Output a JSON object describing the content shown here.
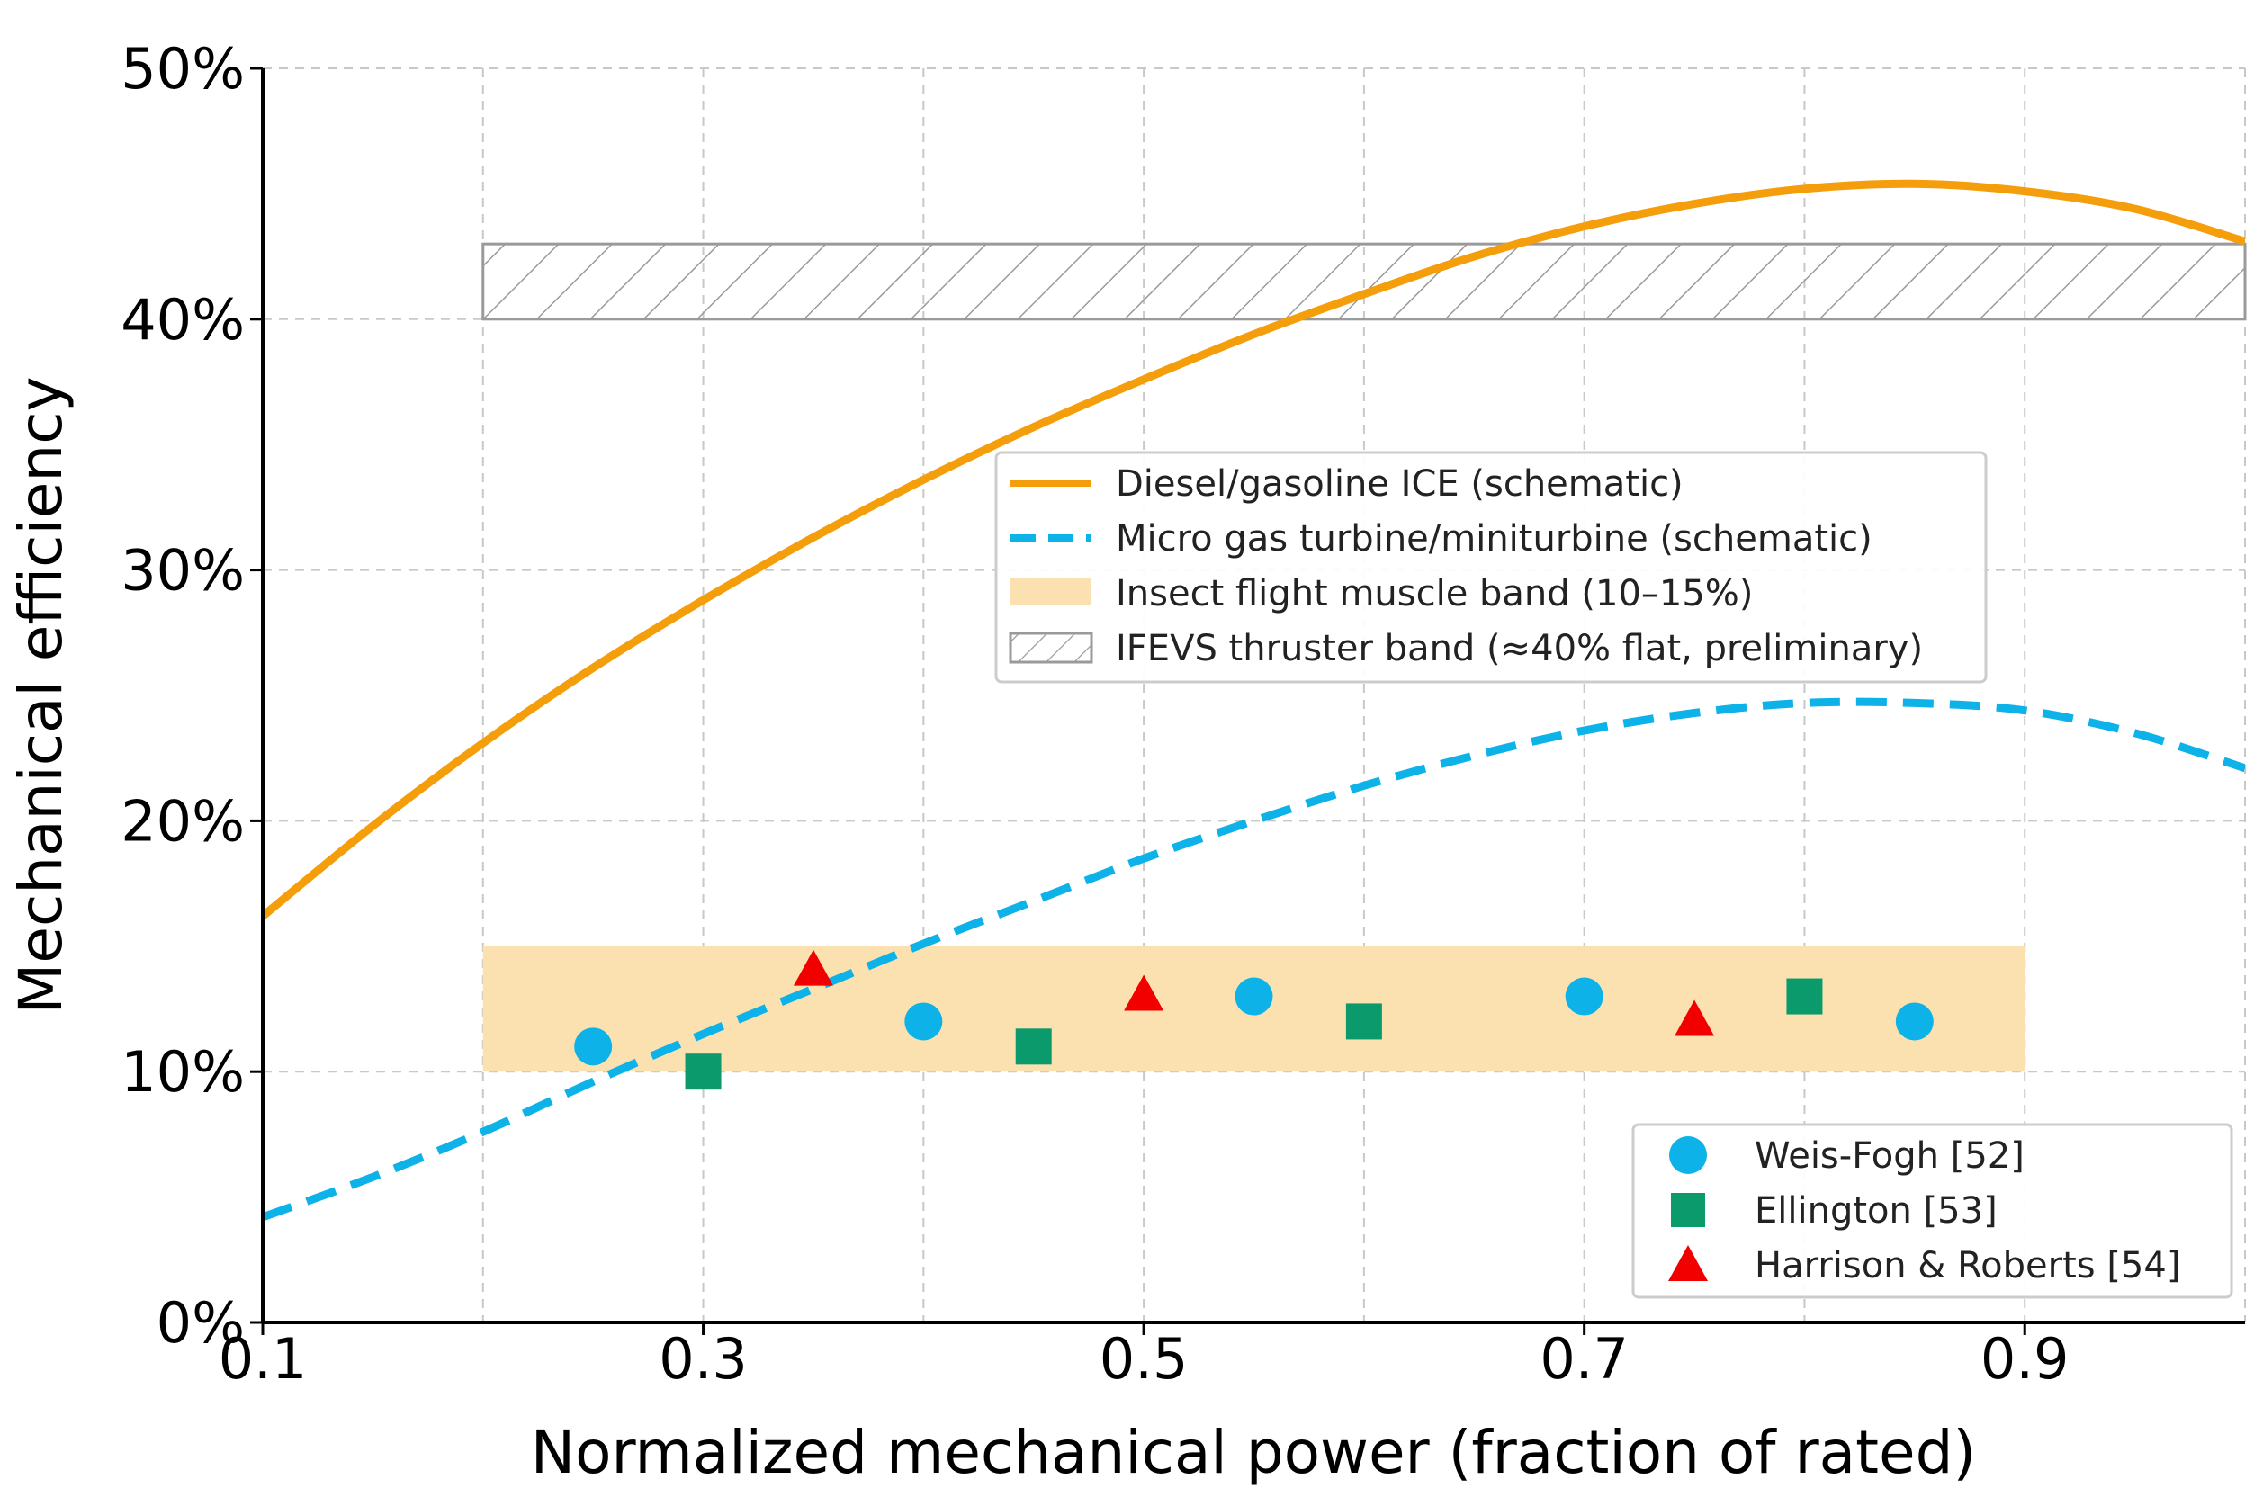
{
  "chart_data": {
    "type": "line",
    "xlabel": "Normalized mechanical power (fraction of rated)",
    "ylabel": "Mechanical efficiency",
    "xlim": [
      0.1,
      1.0
    ],
    "ylim": [
      0,
      50
    ],
    "x_ticks": [
      0.1,
      0.3,
      0.5,
      0.7,
      0.9
    ],
    "x_tick_labels": [
      "0.1",
      "0.3",
      "0.5",
      "0.7",
      "0.9"
    ],
    "y_ticks": [
      0,
      10,
      20,
      30,
      40,
      50
    ],
    "y_tick_labels": [
      "0%",
      "10%",
      "20%",
      "30%",
      "40%",
      "50%"
    ],
    "grid": true,
    "series": [
      {
        "name": "Diesel/gasoline ICE (schematic)",
        "style": "solid",
        "color": "#F59E0B",
        "x": [
          0.1,
          0.15,
          0.2,
          0.25,
          0.3,
          0.35,
          0.4,
          0.45,
          0.5,
          0.55,
          0.6,
          0.65,
          0.7,
          0.75,
          0.8,
          0.85,
          0.9,
          0.95,
          1.0
        ],
        "values": [
          16.2,
          19.8,
          23.1,
          26.1,
          28.8,
          31.3,
          33.6,
          35.7,
          37.6,
          39.4,
          41.0,
          42.5,
          43.7,
          44.6,
          45.2,
          45.4,
          45.1,
          44.4,
          43.1
        ]
      },
      {
        "name": "Micro gas turbine/miniturbine (schematic)",
        "style": "dashed",
        "color": "#0DB2E8",
        "x": [
          0.1,
          0.15,
          0.2,
          0.25,
          0.3,
          0.35,
          0.4,
          0.45,
          0.5,
          0.55,
          0.6,
          0.65,
          0.7,
          0.75,
          0.8,
          0.85,
          0.9,
          0.95,
          1.0
        ],
        "values": [
          4.2,
          5.8,
          7.6,
          9.6,
          11.5,
          13.3,
          15.1,
          16.8,
          18.5,
          20.0,
          21.4,
          22.6,
          23.6,
          24.3,
          24.7,
          24.7,
          24.4,
          23.5,
          22.1
        ]
      }
    ],
    "bands": [
      {
        "name": "Insect flight muscle band (10–15%)",
        "x_range": [
          0.2,
          0.9
        ],
        "y_range": [
          10,
          15
        ],
        "color": "#FBE1B0",
        "pattern": "fill"
      },
      {
        "name": "IFEVS thruster band (≈40% flat, preliminary)",
        "x_range": [
          0.2,
          1.0
        ],
        "y_range": [
          40,
          43
        ],
        "color": "#9A9A9A",
        "pattern": "hatch"
      }
    ],
    "scatter": [
      {
        "name": "Weis-Fogh [52]",
        "marker": "circle",
        "color": "#0DB2E8",
        "x": [
          0.25,
          0.4,
          0.55,
          0.7,
          0.85
        ],
        "y": [
          11,
          12,
          13,
          13,
          12
        ]
      },
      {
        "name": "Ellington [53]",
        "marker": "square",
        "color": "#0A9A6B",
        "x": [
          0.3,
          0.45,
          0.6,
          0.8
        ],
        "y": [
          10,
          11,
          12,
          13
        ]
      },
      {
        "name": "Harrison & Roberts [54]",
        "marker": "triangle",
        "color": "#F20000",
        "x": [
          0.35,
          0.5,
          0.75
        ],
        "y": [
          14,
          13,
          12
        ]
      }
    ],
    "legend_upper": "center",
    "legend_lower": "lower-right"
  }
}
